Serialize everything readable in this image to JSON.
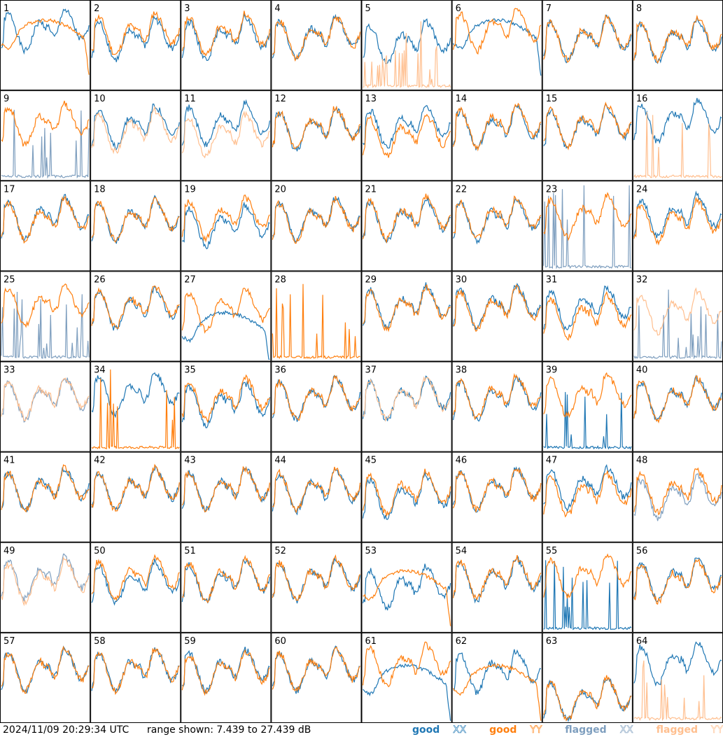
{
  "footer": {
    "timestamp": "2024/11/09 20:29:34 UTC",
    "range_text": "range shown: 7.439 to 27.439 dB"
  },
  "legend": [
    {
      "word": "good",
      "pol": "XX",
      "color": "#1f77b4"
    },
    {
      "word": "good",
      "pol": "YY",
      "color": "#ff7f0e"
    },
    {
      "word": "flagged",
      "pol": "XX",
      "color": "#7f9fbf"
    },
    {
      "word": "flagged",
      "pol": "YY",
      "color": "#ffbf8f"
    }
  ],
  "chart_data": {
    "type": "line",
    "layout": "small-multiples 8x8",
    "x_points": 64,
    "ylim": [
      7.439,
      27.439
    ],
    "series_colors": {
      "good_xx": "#1f77b4",
      "good_yy": "#ff7f0e",
      "flagged_xx": "#7f9fbf",
      "flagged_yy": "#ffbf8f"
    },
    "panels": [
      {
        "id": "1",
        "xx": {
          "shape": "normal",
          "level": 0.72,
          "status": "good"
        },
        "yy": {
          "shape": "hump",
          "level": 0.55,
          "status": "good"
        }
      },
      {
        "id": "2",
        "xx": {
          "shape": "normal",
          "level": 0.62,
          "status": "good"
        },
        "yy": {
          "shape": "normal",
          "level": 0.68,
          "status": "good"
        }
      },
      {
        "id": "3",
        "xx": {
          "shape": "normal",
          "level": 0.63,
          "status": "good"
        },
        "yy": {
          "shape": "normal",
          "level": 0.67,
          "status": "good"
        }
      },
      {
        "id": "4",
        "xx": {
          "shape": "normal",
          "level": 0.64,
          "status": "good"
        },
        "yy": {
          "shape": "normal",
          "level": 0.64,
          "status": "good"
        }
      },
      {
        "id": "5",
        "xx": {
          "shape": "normal",
          "level": 0.58,
          "status": "good"
        },
        "yy": {
          "shape": "spikes",
          "level": 0.1,
          "status": "flagged"
        }
      },
      {
        "id": "6",
        "xx": {
          "shape": "hump",
          "level": 0.55,
          "status": "good"
        },
        "yy": {
          "shape": "normal",
          "level": 0.72,
          "status": "good"
        }
      },
      {
        "id": "7",
        "xx": {
          "shape": "normal",
          "level": 0.62,
          "status": "good"
        },
        "yy": {
          "shape": "normal",
          "level": 0.62,
          "status": "good"
        }
      },
      {
        "id": "8",
        "xx": {
          "shape": "normal",
          "level": 0.6,
          "status": "good"
        },
        "yy": {
          "shape": "normal",
          "level": 0.62,
          "status": "good"
        }
      },
      {
        "id": "9",
        "xx": {
          "shape": "spikes",
          "level": 0.2,
          "status": "flagged"
        },
        "yy": {
          "shape": "normal",
          "level": 0.68,
          "status": "good"
        }
      },
      {
        "id": "10",
        "xx": {
          "shape": "normal",
          "level": 0.66,
          "status": "good"
        },
        "yy": {
          "shape": "normal",
          "level": 0.6,
          "status": "flagged"
        }
      },
      {
        "id": "11",
        "xx": {
          "shape": "normal",
          "level": 0.68,
          "status": "good"
        },
        "yy": {
          "shape": "normal",
          "level": 0.55,
          "status": "flagged"
        }
      },
      {
        "id": "12",
        "xx": {
          "shape": "normal",
          "level": 0.62,
          "status": "good"
        },
        "yy": {
          "shape": "normal",
          "level": 0.63,
          "status": "good"
        }
      },
      {
        "id": "13",
        "xx": {
          "shape": "normal",
          "level": 0.65,
          "status": "good"
        },
        "yy": {
          "shape": "normal",
          "level": 0.55,
          "status": "good"
        }
      },
      {
        "id": "14",
        "xx": {
          "shape": "normal",
          "level": 0.64,
          "status": "good"
        },
        "yy": {
          "shape": "normal",
          "level": 0.66,
          "status": "good"
        }
      },
      {
        "id": "15",
        "xx": {
          "shape": "normal",
          "level": 0.64,
          "status": "good"
        },
        "yy": {
          "shape": "normal",
          "level": 0.66,
          "status": "good"
        }
      },
      {
        "id": "16",
        "xx": {
          "shape": "normal",
          "level": 0.72,
          "status": "good"
        },
        "yy": {
          "shape": "spikes",
          "level": 0.1,
          "status": "flagged"
        }
      },
      {
        "id": "17",
        "xx": {
          "shape": "normal",
          "level": 0.64,
          "status": "good"
        },
        "yy": {
          "shape": "normal",
          "level": 0.62,
          "status": "good"
        }
      },
      {
        "id": "18",
        "xx": {
          "shape": "normal",
          "level": 0.62,
          "status": "good"
        },
        "yy": {
          "shape": "normal",
          "level": 0.62,
          "status": "good"
        }
      },
      {
        "id": "19",
        "xx": {
          "shape": "normal",
          "level": 0.55,
          "status": "good"
        },
        "yy": {
          "shape": "normal",
          "level": 0.64,
          "status": "good"
        }
      },
      {
        "id": "20",
        "xx": {
          "shape": "normal",
          "level": 0.63,
          "status": "good"
        },
        "yy": {
          "shape": "normal",
          "level": 0.62,
          "status": "good"
        }
      },
      {
        "id": "21",
        "xx": {
          "shape": "normal",
          "level": 0.62,
          "status": "good"
        },
        "yy": {
          "shape": "normal",
          "level": 0.64,
          "status": "good"
        }
      },
      {
        "id": "22",
        "xx": {
          "shape": "normal",
          "level": 0.62,
          "status": "good"
        },
        "yy": {
          "shape": "normal",
          "level": 0.64,
          "status": "good"
        }
      },
      {
        "id": "23",
        "xx": {
          "shape": "spikes",
          "level": 0.45,
          "status": "flagged"
        },
        "yy": {
          "shape": "normal",
          "level": 0.66,
          "status": "good"
        }
      },
      {
        "id": "24",
        "xx": {
          "shape": "normal",
          "level": 0.66,
          "status": "good"
        },
        "yy": {
          "shape": "normal",
          "level": 0.6,
          "status": "good"
        }
      },
      {
        "id": "25",
        "xx": {
          "shape": "spikes",
          "level": 0.1,
          "status": "flagged"
        },
        "yy": {
          "shape": "normal",
          "level": 0.68,
          "status": "good"
        }
      },
      {
        "id": "26",
        "xx": {
          "shape": "normal",
          "level": 0.64,
          "status": "good"
        },
        "yy": {
          "shape": "normal",
          "level": 0.66,
          "status": "good"
        }
      },
      {
        "id": "27",
        "xx": {
          "shape": "hump",
          "level": 0.3,
          "status": "good"
        },
        "yy": {
          "shape": "normal",
          "level": 0.62,
          "status": "good"
        }
      },
      {
        "id": "28",
        "xx": {
          "shape": "normal",
          "level": 0.0,
          "status": "none"
        },
        "yy": {
          "shape": "spikes",
          "level": 0.25,
          "status": "good"
        }
      },
      {
        "id": "29",
        "xx": {
          "shape": "normal",
          "level": 0.66,
          "status": "good"
        },
        "yy": {
          "shape": "normal",
          "level": 0.64,
          "status": "good"
        }
      },
      {
        "id": "30",
        "xx": {
          "shape": "normal",
          "level": 0.66,
          "status": "good"
        },
        "yy": {
          "shape": "normal",
          "level": 0.64,
          "status": "good"
        }
      },
      {
        "id": "31",
        "xx": {
          "shape": "normal",
          "level": 0.64,
          "status": "good"
        },
        "yy": {
          "shape": "normal",
          "level": 0.55,
          "status": "good"
        }
      },
      {
        "id": "32",
        "xx": {
          "shape": "spikes",
          "level": 0.12,
          "status": "flagged"
        },
        "yy": {
          "shape": "normal",
          "level": 0.6,
          "status": "flagged"
        }
      },
      {
        "id": "33",
        "xx": {
          "shape": "normal",
          "level": 0.64,
          "status": "flagged"
        },
        "yy": {
          "shape": "normal",
          "level": 0.66,
          "status": "flagged"
        }
      },
      {
        "id": "34",
        "xx": {
          "shape": "normal",
          "level": 0.7,
          "status": "good"
        },
        "yy": {
          "shape": "spikes",
          "level": 0.25,
          "status": "good"
        }
      },
      {
        "id": "35",
        "xx": {
          "shape": "normal",
          "level": 0.58,
          "status": "good"
        },
        "yy": {
          "shape": "normal",
          "level": 0.64,
          "status": "good"
        }
      },
      {
        "id": "36",
        "xx": {
          "shape": "normal",
          "level": 0.64,
          "status": "good"
        },
        "yy": {
          "shape": "normal",
          "level": 0.64,
          "status": "good"
        }
      },
      {
        "id": "37",
        "xx": {
          "shape": "normal",
          "level": 0.64,
          "status": "good"
        },
        "yy": {
          "shape": "normal",
          "level": 0.64,
          "status": "flagged"
        }
      },
      {
        "id": "38",
        "xx": {
          "shape": "normal",
          "level": 0.64,
          "status": "good"
        },
        "yy": {
          "shape": "normal",
          "level": 0.66,
          "status": "good"
        }
      },
      {
        "id": "39",
        "xx": {
          "shape": "spikes",
          "level": 0.12,
          "status": "good"
        },
        "yy": {
          "shape": "normal",
          "level": 0.68,
          "status": "good"
        }
      },
      {
        "id": "40",
        "xx": {
          "shape": "normal",
          "level": 0.64,
          "status": "good"
        },
        "yy": {
          "shape": "normal",
          "level": 0.64,
          "status": "good"
        }
      },
      {
        "id": "41",
        "xx": {
          "shape": "normal",
          "level": 0.64,
          "status": "good"
        },
        "yy": {
          "shape": "normal",
          "level": 0.64,
          "status": "good"
        }
      },
      {
        "id": "42",
        "xx": {
          "shape": "normal",
          "level": 0.64,
          "status": "good"
        },
        "yy": {
          "shape": "normal",
          "level": 0.64,
          "status": "good"
        }
      },
      {
        "id": "43",
        "xx": {
          "shape": "normal",
          "level": 0.64,
          "status": "good"
        },
        "yy": {
          "shape": "normal",
          "level": 0.64,
          "status": "good"
        }
      },
      {
        "id": "44",
        "xx": {
          "shape": "normal",
          "level": 0.62,
          "status": "good"
        },
        "yy": {
          "shape": "normal",
          "level": 0.64,
          "status": "good"
        }
      },
      {
        "id": "45",
        "xx": {
          "shape": "normal",
          "level": 0.55,
          "status": "good"
        },
        "yy": {
          "shape": "normal",
          "level": 0.6,
          "status": "good"
        }
      },
      {
        "id": "46",
        "xx": {
          "shape": "normal",
          "level": 0.64,
          "status": "good"
        },
        "yy": {
          "shape": "normal",
          "level": 0.64,
          "status": "good"
        }
      },
      {
        "id": "47",
        "xx": {
          "shape": "normal",
          "level": 0.66,
          "status": "good"
        },
        "yy": {
          "shape": "normal",
          "level": 0.58,
          "status": "good"
        }
      },
      {
        "id": "48",
        "xx": {
          "shape": "normal",
          "level": 0.55,
          "status": "flagged"
        },
        "yy": {
          "shape": "normal",
          "level": 0.62,
          "status": "good"
        }
      },
      {
        "id": "49",
        "xx": {
          "shape": "normal",
          "level": 0.66,
          "status": "flagged"
        },
        "yy": {
          "shape": "normal",
          "level": 0.62,
          "status": "flagged"
        }
      },
      {
        "id": "50",
        "xx": {
          "shape": "normal",
          "level": 0.6,
          "status": "good"
        },
        "yy": {
          "shape": "normal",
          "level": 0.66,
          "status": "good"
        }
      },
      {
        "id": "51",
        "xx": {
          "shape": "normal",
          "level": 0.62,
          "status": "good"
        },
        "yy": {
          "shape": "normal",
          "level": 0.64,
          "status": "good"
        }
      },
      {
        "id": "52",
        "xx": {
          "shape": "normal",
          "level": 0.64,
          "status": "good"
        },
        "yy": {
          "shape": "normal",
          "level": 0.64,
          "status": "good"
        }
      },
      {
        "id": "53",
        "xx": {
          "shape": "normal",
          "level": 0.55,
          "status": "good"
        },
        "yy": {
          "shape": "hump",
          "level": 0.45,
          "status": "good"
        }
      },
      {
        "id": "54",
        "xx": {
          "shape": "normal",
          "level": 0.64,
          "status": "good"
        },
        "yy": {
          "shape": "normal",
          "level": 0.66,
          "status": "good"
        }
      },
      {
        "id": "55",
        "xx": {
          "shape": "spikes",
          "level": 0.2,
          "status": "good"
        },
        "yy": {
          "shape": "normal",
          "level": 0.68,
          "status": "good"
        }
      },
      {
        "id": "56",
        "xx": {
          "shape": "normal",
          "level": 0.64,
          "status": "good"
        },
        "yy": {
          "shape": "normal",
          "level": 0.62,
          "status": "good"
        }
      },
      {
        "id": "57",
        "xx": {
          "shape": "normal",
          "level": 0.64,
          "status": "good"
        },
        "yy": {
          "shape": "normal",
          "level": 0.64,
          "status": "good"
        }
      },
      {
        "id": "58",
        "xx": {
          "shape": "normal",
          "level": 0.64,
          "status": "good"
        },
        "yy": {
          "shape": "normal",
          "level": 0.64,
          "status": "good"
        }
      },
      {
        "id": "59",
        "xx": {
          "shape": "normal",
          "level": 0.64,
          "status": "good"
        },
        "yy": {
          "shape": "normal",
          "level": 0.62,
          "status": "good"
        }
      },
      {
        "id": "60",
        "xx": {
          "shape": "normal",
          "level": 0.64,
          "status": "good"
        },
        "yy": {
          "shape": "normal",
          "level": 0.64,
          "status": "good"
        }
      },
      {
        "id": "61",
        "xx": {
          "shape": "hump",
          "level": 0.4,
          "status": "good"
        },
        "yy": {
          "shape": "normal",
          "level": 0.7,
          "status": "good"
        }
      },
      {
        "id": "62",
        "xx": {
          "shape": "normal",
          "level": 0.62,
          "status": "good"
        },
        "yy": {
          "shape": "hump",
          "level": 0.4,
          "status": "good"
        }
      },
      {
        "id": "63",
        "xx": {
          "shape": "normal",
          "level": 0.3,
          "status": "good"
        },
        "yy": {
          "shape": "normal",
          "level": 0.3,
          "status": "good"
        }
      },
      {
        "id": "64",
        "xx": {
          "shape": "normal",
          "level": 0.72,
          "status": "good"
        },
        "yy": {
          "shape": "spikes",
          "level": 0.1,
          "status": "flagged"
        }
      }
    ]
  }
}
